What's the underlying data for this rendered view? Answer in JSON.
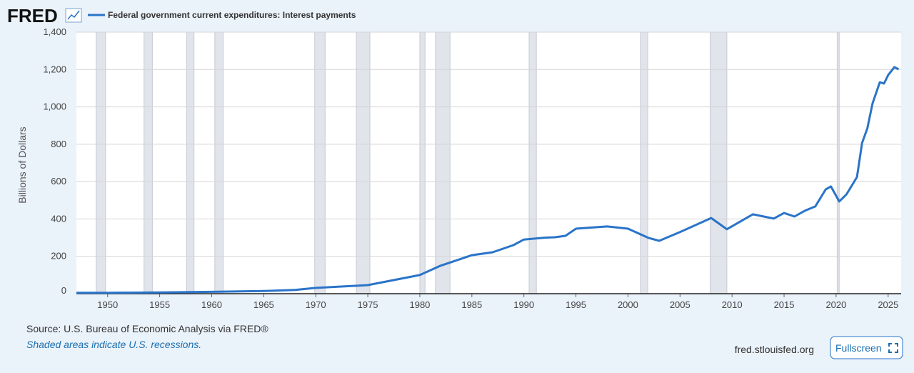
{
  "chart_data": {
    "type": "line",
    "logo": "FRED",
    "ylabel": "Billions of Dollars",
    "source": "Source: U.S. Bureau of Economic Analysis via FRED®",
    "note": "Shaded areas indicate U.S. recessions.",
    "site": "fred.stlouisfed.org",
    "button": "Fullscreen",
    "x": [
      1947,
      1950,
      1955,
      1960,
      1965,
      1968,
      1970,
      1975,
      1980,
      1982,
      1984,
      1985,
      1987,
      1989,
      1990,
      1992,
      1993,
      1994,
      1995,
      1998,
      2000,
      2002,
      2003,
      2005,
      2008,
      2009.5,
      2012,
      2014,
      2015,
      2016,
      2017,
      2018,
      2019,
      2019.5,
      2020.3,
      2021,
      2022,
      2022.5,
      2023,
      2023.5,
      2024.2,
      2024.6,
      2025,
      2025.6,
      2026
    ],
    "series": [
      {
        "name": "Federal government current expenditures: Interest payments",
        "color": "#2a74c8",
        "values": [
          5,
          5,
          7,
          10,
          14,
          20,
          31,
          46,
          100,
          150,
          187,
          206,
          222,
          260,
          290,
          300,
          302,
          310,
          348,
          360,
          348,
          298,
          283,
          330,
          405,
          345,
          425,
          402,
          432,
          413,
          444,
          467,
          558,
          574,
          494,
          532,
          624,
          807,
          884,
          1018,
          1132,
          1125,
          1170,
          1213,
          1201
        ]
      }
    ],
    "recessions": [
      [
        1948.9,
        1949.8
      ],
      [
        1953.5,
        1954.3
      ],
      [
        1957.6,
        1958.3
      ],
      [
        1960.3,
        1961.1
      ],
      [
        1969.9,
        1970.9
      ],
      [
        1973.9,
        1975.2
      ],
      [
        1980.0,
        1980.5
      ],
      [
        1981.5,
        1982.9
      ],
      [
        1990.5,
        1991.2
      ],
      [
        2001.2,
        2001.9
      ],
      [
        2007.9,
        2009.5
      ],
      [
        2020.1,
        2020.3
      ]
    ],
    "xlim": [
      1947,
      2026.25
    ],
    "xticks": [
      1950,
      1955,
      1960,
      1965,
      1970,
      1975,
      1980,
      1985,
      1990,
      1995,
      2000,
      2005,
      2010,
      2015,
      2020,
      2025
    ],
    "ylim": [
      0,
      1400
    ],
    "yticks": [
      0,
      200,
      400,
      600,
      800,
      {
        "value": 1000,
        "label": "1,000"
      },
      {
        "value": 1200,
        "label": "1,200"
      },
      {
        "value": 1400,
        "label": "1,400"
      }
    ],
    "grid": true
  }
}
